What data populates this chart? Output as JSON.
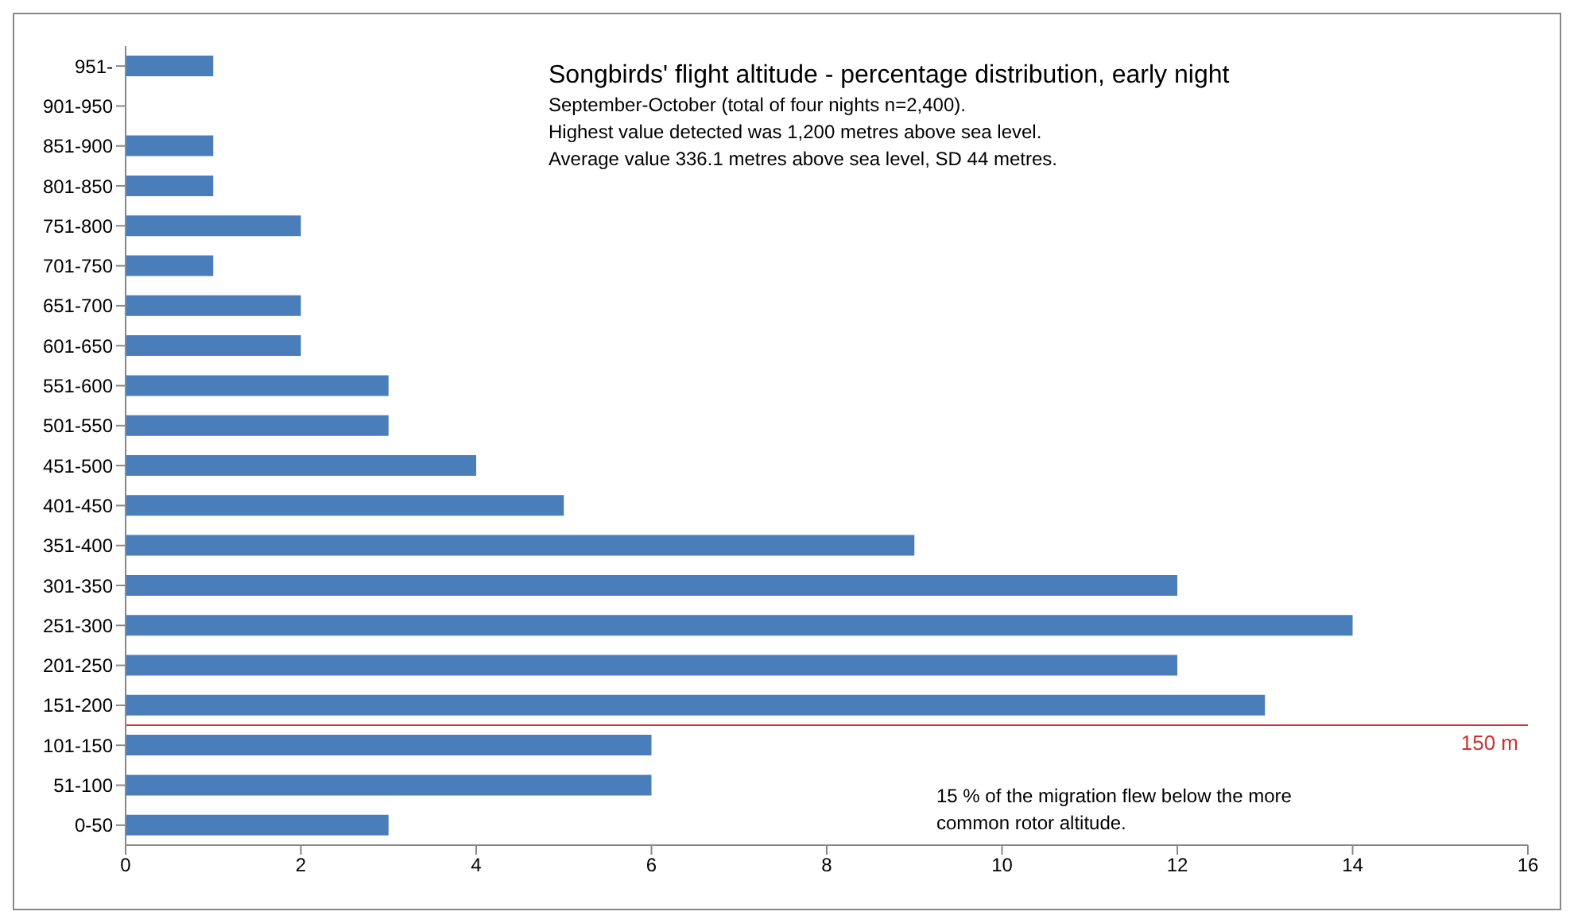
{
  "chart_data": {
    "type": "bar",
    "orientation": "horizontal",
    "title": "Songbirds' flight altitude - percentage distribution, early  night",
    "subtitle": "September-October (total of four nights n=2,400).",
    "annotations": [
      "Highest value detected was 1,200 metres above sea level.",
      "Average value 336.1 metres above sea level, SD 44 metres.",
      "15 %  of the migration flew below the more common rotor altitude."
    ],
    "categories": [
      "951-",
      "901-950",
      "851-900",
      "801-850",
      "751-800",
      "701-750",
      "651-700",
      "601-650",
      "551-600",
      "501-550",
      "451-500",
      "401-450",
      "351-400",
      "301-350",
      "251-300",
      "201-250",
      "151-200",
      "101-150",
      "51-100",
      "0-50"
    ],
    "values": [
      1,
      0,
      1,
      1,
      2,
      1,
      2,
      2,
      3,
      3,
      4,
      5,
      9,
      12,
      14,
      12,
      13,
      6,
      6,
      3
    ],
    "color": "#4a7ebb",
    "xlim": [
      0,
      16
    ],
    "xticks": [
      0,
      2,
      4,
      6,
      8,
      10,
      12,
      14,
      16
    ],
    "grid": false,
    "legend": false,
    "ref_lines": [
      {
        "axis": "y",
        "value": "151-200",
        "label": "150 m",
        "color": "#d03030"
      }
    ]
  }
}
